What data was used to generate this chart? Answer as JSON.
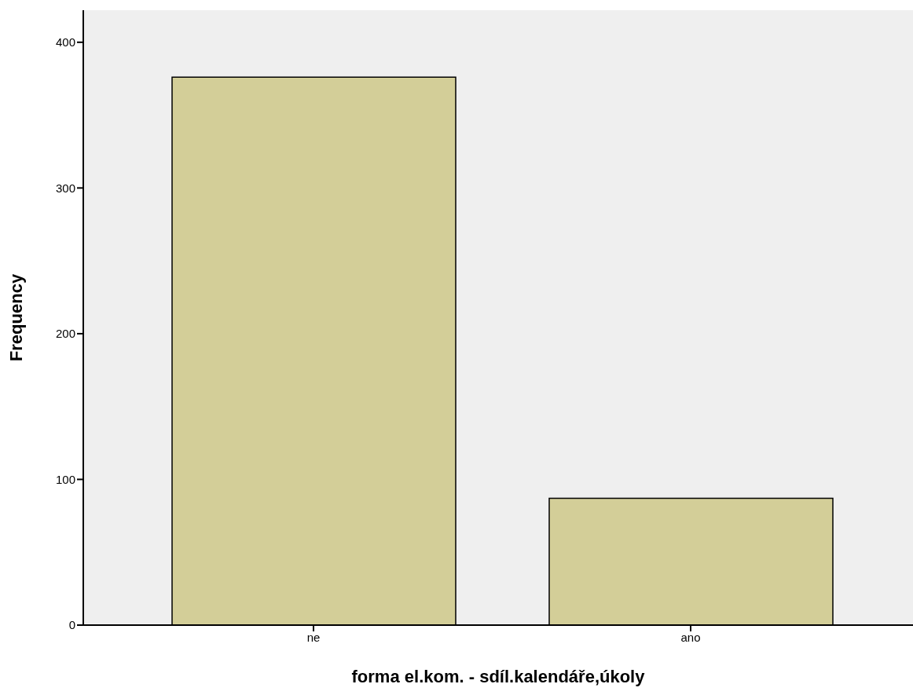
{
  "chart_data": {
    "type": "bar",
    "xlabel": "forma el.kom. - sdíl.kalendáře,úkoly",
    "ylabel": "Frequency",
    "categories": [
      "ne",
      "ano"
    ],
    "values": [
      376,
      87
    ],
    "color": "#d3ce98",
    "ylim": [
      0,
      422
    ],
    "yticks": [
      0,
      100,
      200,
      300,
      400
    ],
    "grid": false
  }
}
